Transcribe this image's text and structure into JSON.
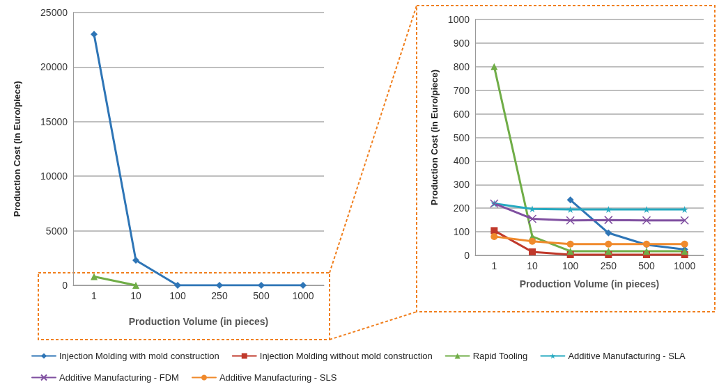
{
  "chart_data": [
    {
      "type": "line",
      "xlabel": "Production Volume (in pieces)",
      "ylabel": "Production Cost (in Euro/piece)",
      "categories": [
        "1",
        "10",
        "100",
        "250",
        "500",
        "1000"
      ],
      "ylim": [
        0,
        25000
      ],
      "yticks": [
        0,
        5000,
        10000,
        15000,
        20000,
        25000
      ],
      "grid": "y",
      "series": [
        {
          "color": "#70ad47",
          "marker": "triangle",
          "values": [
            800,
            0,
            null,
            null,
            null,
            null
          ]
        },
        {
          "color": "#2e75b6",
          "marker": "diamond",
          "values": [
            23000,
            2300,
            0,
            0,
            0,
            0
          ]
        }
      ]
    },
    {
      "type": "line",
      "xlabel": "Production Volume (in pieces)",
      "ylabel": "Production Cost (in Euro/piece)",
      "categories": [
        "1",
        "10",
        "100",
        "250",
        "500",
        "1000"
      ],
      "ylim": [
        0,
        1000
      ],
      "yticks": [
        0,
        100,
        200,
        300,
        400,
        500,
        600,
        700,
        800,
        900,
        1000
      ],
      "grid": "y",
      "legend": "bottom",
      "series": [
        {
          "name": "Injection Molding with mold construction",
          "color": "#2e75b6",
          "marker": "diamond",
          "values": [
            null,
            null,
            235,
            95,
            45,
            25
          ]
        },
        {
          "name": "Injection Molding without mold construction",
          "color": "#c0392b",
          "marker": "square",
          "values": [
            105,
            15,
            3,
            3,
            3,
            3
          ]
        },
        {
          "name": "Rapid Tooling",
          "color": "#70ad47",
          "marker": "triangle",
          "values": [
            800,
            80,
            18,
            18,
            18,
            18
          ]
        },
        {
          "name": "Additive Manufacturing - SLA",
          "color": "#26a9c0",
          "marker": "star",
          "values": [
            220,
            197,
            195,
            195,
            195,
            195
          ]
        },
        {
          "name": "Additive Manufacturing - FDM",
          "color": "#7f4fa0",
          "marker": "cross",
          "values": [
            220,
            155,
            148,
            150,
            148,
            148
          ]
        },
        {
          "name": "Additive Manufacturing - SLS",
          "color": "#f08a2c",
          "marker": "circle",
          "values": [
            80,
            60,
            48,
            48,
            48,
            48
          ]
        }
      ]
    }
  ]
}
